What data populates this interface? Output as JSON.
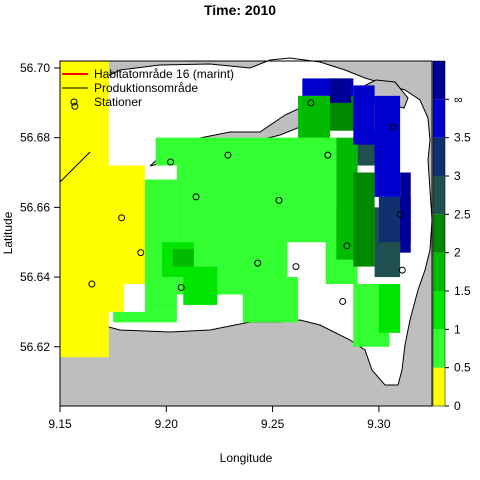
{
  "chart_data": {
    "type": "heatmap",
    "title": "Time: 2010",
    "xlabel": "Longitude",
    "ylabel": "Latitude",
    "xlim": [
      9.15,
      9.325
    ],
    "ylim": [
      56.603,
      56.702
    ],
    "x_ticks": [
      9.15,
      9.2,
      9.25,
      9.3
    ],
    "x_tick_labels": [
      "9.15",
      "9.20",
      "9.25",
      "9.30"
    ],
    "y_ticks": [
      56.62,
      56.64,
      56.66,
      56.68,
      56.7
    ],
    "y_tick_labels": [
      "56.62",
      "56.64",
      "56.66",
      "56.68",
      "56.70"
    ],
    "grid": false,
    "legend_position": "top-left",
    "legend": [
      {
        "label": "Habitatområde 16 (marint)",
        "type": "line",
        "color": "#ff0000"
      },
      {
        "label": "Produktionsområde",
        "type": "line",
        "color": "#000000"
      },
      {
        "label": "Stationer",
        "type": "point",
        "color": "#000000"
      }
    ],
    "colorbar": {
      "breaks": [
        0,
        0.5,
        1,
        1.5,
        2,
        2.5,
        3,
        3.5
      ],
      "tick_labels": [
        "0",
        "0.5",
        "1",
        "1.5",
        "2",
        "2.5",
        "3",
        "3.5",
        "∞"
      ],
      "colors": [
        "#ffff00",
        "#33ff33",
        "#00e600",
        "#00bb00",
        "#008800",
        "#205050",
        "#103070",
        "#0000cc",
        "#000099"
      ]
    },
    "cell_size": {
      "dlon": 0.0051,
      "dlat": 0.00245
    },
    "cells": [
      {
        "lon_min": 9.15,
        "lat_min": 56.617,
        "lon_max": 9.173,
        "lat_max": 56.702,
        "value": 0.25
      },
      {
        "lon_min": 9.173,
        "lat_min": 56.638,
        "lon_max": 9.19,
        "lat_max": 56.672,
        "value": 0.25
      },
      {
        "lon_min": 9.16,
        "lat_min": 56.63,
        "lon_max": 9.18,
        "lat_max": 56.64,
        "value": 0.25
      },
      {
        "lon_min": 9.19,
        "lat_min": 56.63,
        "lon_max": 9.205,
        "lat_max": 56.668,
        "value": 0.75
      },
      {
        "lon_min": 9.175,
        "lat_min": 56.627,
        "lon_max": 9.205,
        "lat_max": 56.63,
        "value": 0.75
      },
      {
        "lon_min": 9.205,
        "lat_min": 56.635,
        "lon_max": 9.257,
        "lat_max": 56.672,
        "value": 0.75
      },
      {
        "lon_min": 9.195,
        "lat_min": 56.672,
        "lon_max": 9.277,
        "lat_max": 56.68,
        "value": 0.75
      },
      {
        "lon_min": 9.257,
        "lat_min": 56.65,
        "lon_max": 9.28,
        "lat_max": 56.68,
        "value": 0.75
      },
      {
        "lon_min": 9.236,
        "lat_min": 56.627,
        "lon_max": 9.262,
        "lat_max": 56.64,
        "value": 0.75
      },
      {
        "lon_min": 9.275,
        "lat_min": 56.638,
        "lon_max": 9.29,
        "lat_max": 56.66,
        "value": 0.75
      },
      {
        "lon_min": 9.288,
        "lat_min": 56.62,
        "lon_max": 9.305,
        "lat_max": 56.638,
        "value": 0.75
      },
      {
        "lon_min": 9.262,
        "lat_min": 56.685,
        "lon_max": 9.28,
        "lat_max": 56.692,
        "value": 0.75
      },
      {
        "lon_min": 9.198,
        "lat_min": 56.64,
        "lon_max": 9.213,
        "lat_max": 56.65,
        "value": 1.25
      },
      {
        "lon_min": 9.208,
        "lat_min": 56.632,
        "lon_max": 9.224,
        "lat_max": 56.643,
        "value": 1.25
      },
      {
        "lon_min": 9.3,
        "lat_min": 56.624,
        "lon_max": 9.31,
        "lat_max": 56.638,
        "value": 1.25
      },
      {
        "lon_min": 9.203,
        "lat_min": 56.643,
        "lon_max": 9.213,
        "lat_max": 56.648,
        "value": 1.75
      },
      {
        "lon_min": 9.28,
        "lat_min": 56.645,
        "lon_max": 9.29,
        "lat_max": 56.68,
        "value": 1.75
      },
      {
        "lon_min": 9.262,
        "lat_min": 56.68,
        "lon_max": 9.277,
        "lat_max": 56.692,
        "value": 1.75
      },
      {
        "lon_min": 9.288,
        "lat_min": 56.643,
        "lon_max": 9.298,
        "lat_max": 56.67,
        "value": 2.25
      },
      {
        "lon_min": 9.277,
        "lat_min": 56.682,
        "lon_max": 9.29,
        "lat_max": 56.692,
        "value": 2.25
      },
      {
        "lon_min": 9.298,
        "lat_min": 56.64,
        "lon_max": 9.31,
        "lat_max": 56.66,
        "value": 2.75
      },
      {
        "lon_min": 9.29,
        "lat_min": 56.672,
        "lon_max": 9.3,
        "lat_max": 56.682,
        "value": 2.75
      },
      {
        "lon_min": 9.3,
        "lat_min": 56.65,
        "lon_max": 9.315,
        "lat_max": 56.663,
        "value": 3.25
      },
      {
        "lon_min": 9.298,
        "lat_min": 56.663,
        "lon_max": 9.31,
        "lat_max": 56.692,
        "value": 3.75
      },
      {
        "lon_min": 9.264,
        "lat_min": 56.692,
        "lon_max": 9.288,
        "lat_max": 56.697,
        "value": 3.75
      },
      {
        "lon_min": 9.288,
        "lat_min": 56.678,
        "lon_max": 9.298,
        "lat_max": 56.695,
        "value": 3.75
      },
      {
        "lon_min": 9.31,
        "lat_min": 56.647,
        "lon_max": 9.315,
        "lat_max": 56.67,
        "value": 4.5
      },
      {
        "lon_min": 9.277,
        "lat_min": 56.69,
        "lon_max": 9.287,
        "lat_max": 56.697,
        "value": 4.5
      }
    ],
    "stations": [
      {
        "lon": 9.157,
        "lat": 56.689
      },
      {
        "lon": 9.202,
        "lat": 56.673
      },
      {
        "lon": 9.229,
        "lat": 56.675
      },
      {
        "lon": 9.276,
        "lat": 56.675
      },
      {
        "lon": 9.214,
        "lat": 56.663
      },
      {
        "lon": 9.253,
        "lat": 56.662
      },
      {
        "lon": 9.179,
        "lat": 56.657
      },
      {
        "lon": 9.188,
        "lat": 56.647
      },
      {
        "lon": 9.165,
        "lat": 56.638
      },
      {
        "lon": 9.207,
        "lat": 56.637
      },
      {
        "lon": 9.243,
        "lat": 56.644
      },
      {
        "lon": 9.261,
        "lat": 56.643
      },
      {
        "lon": 9.285,
        "lat": 56.649
      },
      {
        "lon": 9.283,
        "lat": 56.633
      },
      {
        "lon": 9.31,
        "lat": 56.658
      },
      {
        "lon": 9.311,
        "lat": 56.642
      },
      {
        "lon": 9.268,
        "lat": 56.69
      },
      {
        "lon": 9.307,
        "lat": 56.683
      }
    ]
  }
}
